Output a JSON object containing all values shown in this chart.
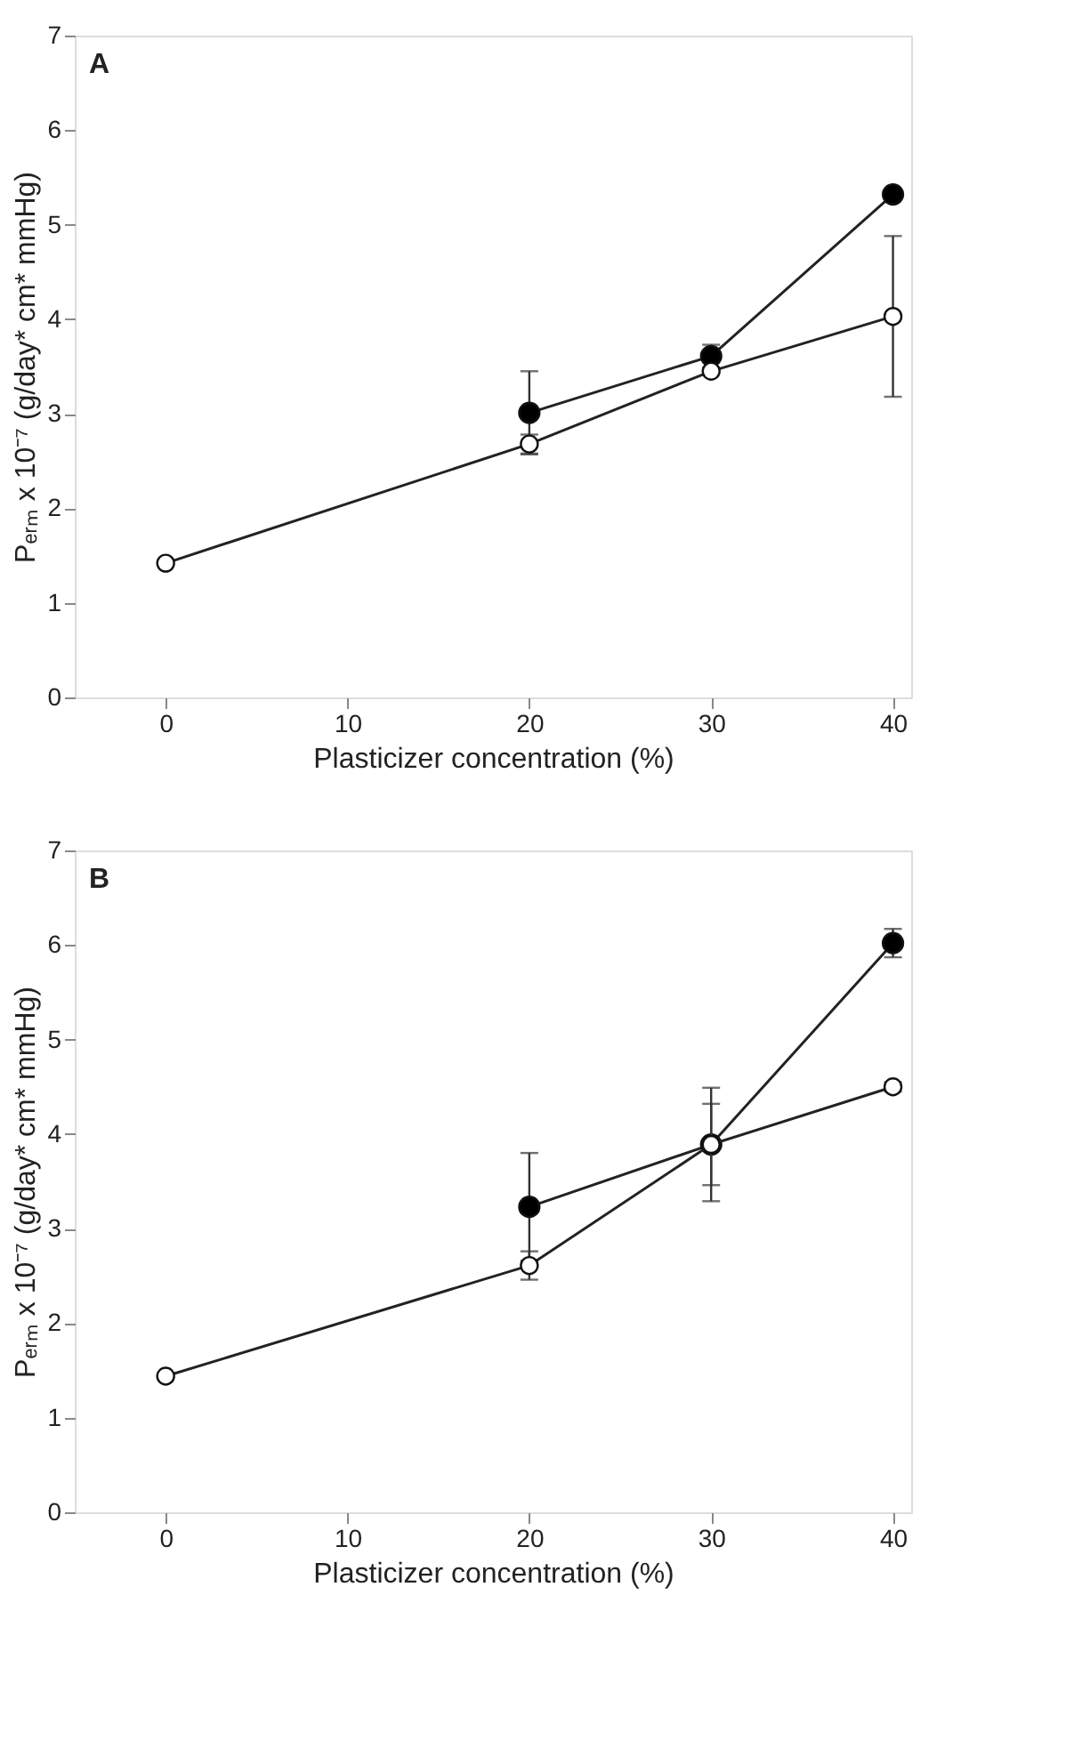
{
  "chart_data": [
    {
      "type": "line",
      "title": "A",
      "xlabel": "Plasticizer concentration (%)",
      "ylabel": "Pₑᵣₘ x 10⁻⁷ (g/day* cm* mmHg)",
      "xlim": [
        -5,
        41
      ],
      "xticks": [
        0,
        10,
        20,
        30,
        40
      ],
      "ylim": [
        0,
        7
      ],
      "yticks": [
        0,
        1,
        2,
        3,
        4,
        5,
        6,
        7
      ],
      "grid": false,
      "legend": false,
      "marker": "circle",
      "line_style": "solid",
      "series": [
        {
          "color": "#000000",
          "x": [
            20,
            30,
            40
          ],
          "values": [
            3.01,
            3.61,
            5.32
          ],
          "errors": [
            0.44,
            0.12,
            null
          ]
        },
        {
          "color": "#ffffff",
          "x": [
            0,
            20,
            30,
            40
          ],
          "values": [
            1.42,
            2.68,
            3.45,
            4.03
          ],
          "errors": [
            null,
            0.1,
            null,
            0.85
          ]
        }
      ]
    },
    {
      "type": "line",
      "title": "B",
      "xlabel": "Plasticizer concentration (%)",
      "ylabel": "Pₑᵣₘ x 10⁻⁷ (g/day* cm* mmHg)",
      "xlim": [
        -5,
        41
      ],
      "xticks": [
        0,
        10,
        20,
        30,
        40
      ],
      "ylim": [
        0,
        7
      ],
      "yticks": [
        0,
        1,
        2,
        3,
        4,
        5,
        6,
        7
      ],
      "grid": false,
      "legend": false,
      "marker": "circle",
      "line_style": "solid",
      "series": [
        {
          "color": "#000000",
          "x": [
            20,
            30,
            40
          ],
          "values": [
            3.23,
            3.89,
            6.02
          ],
          "errors": [
            0.57,
            0.6,
            0.15
          ]
        },
        {
          "color": "#ffffff",
          "x": [
            0,
            20,
            30,
            40
          ],
          "values": [
            1.44,
            2.61,
            3.89,
            4.5
          ],
          "errors": [
            null,
            0.15,
            0.43,
            0.05
          ]
        }
      ]
    }
  ]
}
